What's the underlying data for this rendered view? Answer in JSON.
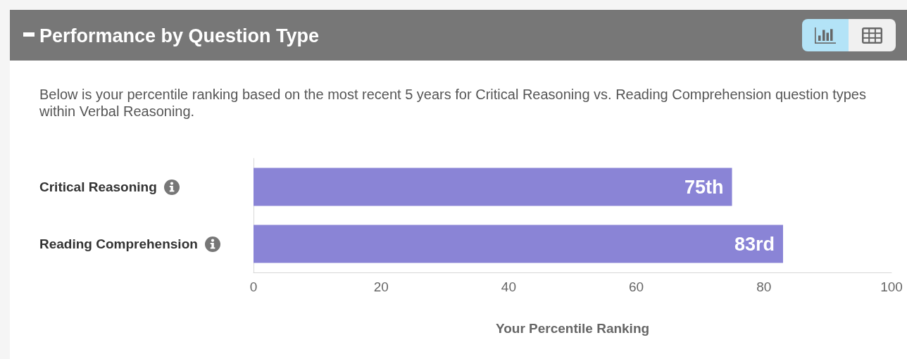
{
  "chart_data": {
    "type": "bar",
    "orientation": "horizontal",
    "title": "Performance by Question Type",
    "subtitle": "Below is your percentile ranking based on the most recent 5 years for Critical Reasoning vs. Reading Comprehension question types within Verbal Reasoning.",
    "categories": [
      "Critical Reasoning",
      "Reading Comprehension"
    ],
    "values": [
      75,
      83
    ],
    "value_labels": [
      "75th",
      "83rd"
    ],
    "color": "#8a84d6",
    "xlim": [
      0,
      100
    ],
    "xticks": [
      0,
      20,
      40,
      60,
      80,
      100
    ],
    "xlabel": "Your Percentile Ranking",
    "grid": false
  }
}
